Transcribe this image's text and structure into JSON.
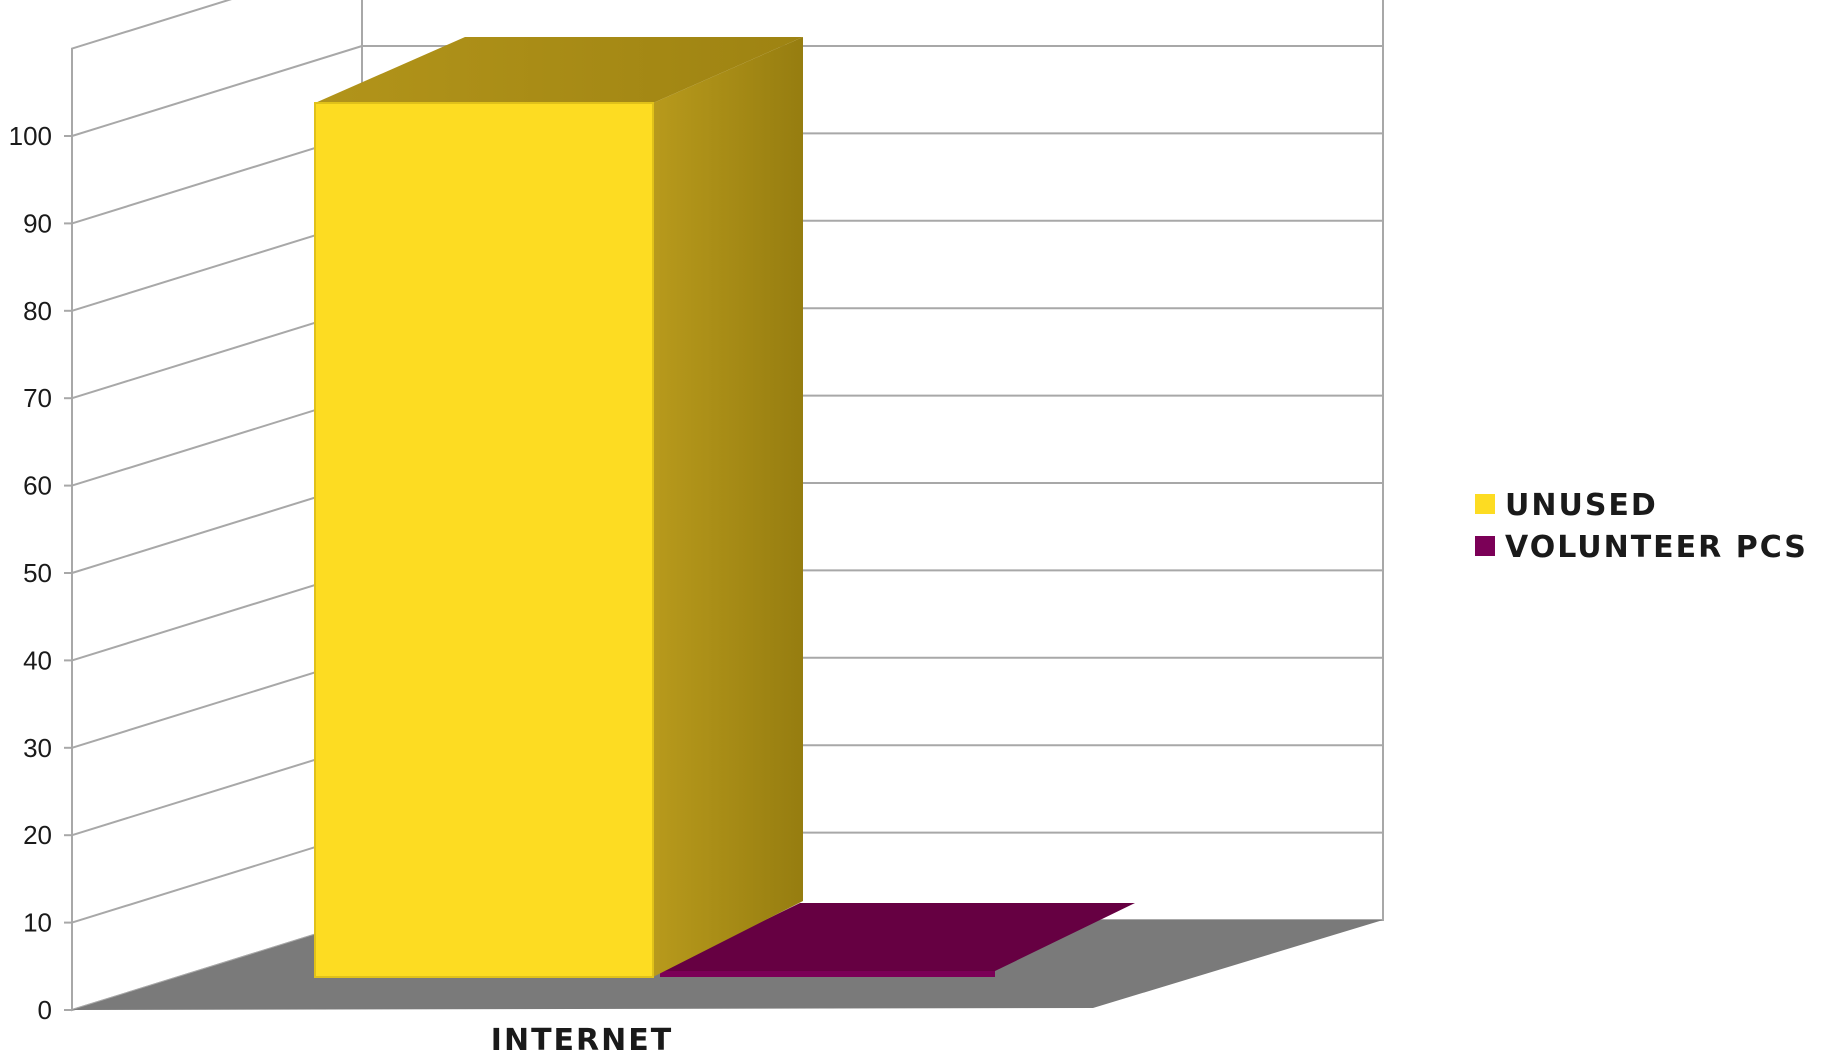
{
  "chart_data": {
    "type": "bar",
    "style": "3d-column",
    "categories": [
      "INTERNET"
    ],
    "series": [
      {
        "name": "UNUSED",
        "values": [
          100
        ],
        "color": "#fddc22"
      },
      {
        "name": "VOLUNTEER PCS",
        "values": [
          0
        ],
        "color": "#7b0057"
      }
    ],
    "y_ticks": [
      "0",
      "10",
      "20",
      "30",
      "40",
      "50",
      "60",
      "70",
      "80",
      "90",
      "100"
    ],
    "ylim": [
      0,
      110
    ],
    "grid": true,
    "legend_position": "right",
    "floor_color": "#7a7a7a"
  }
}
